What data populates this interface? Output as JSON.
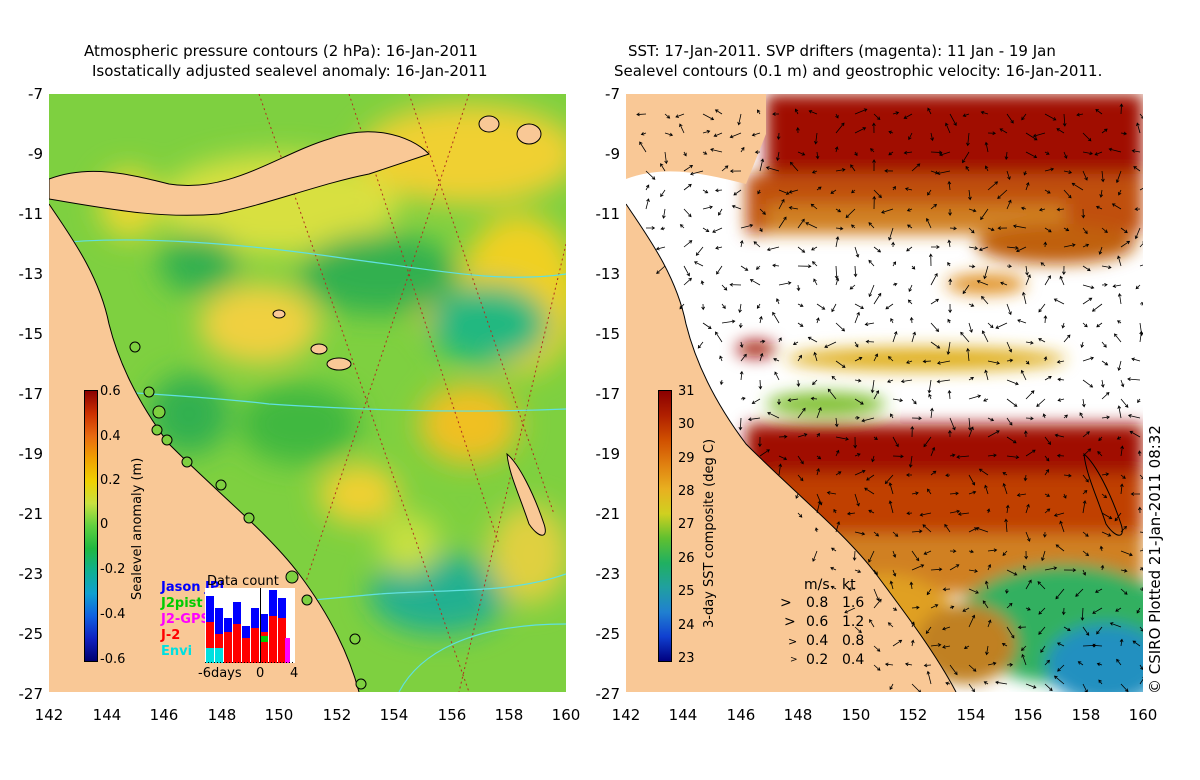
{
  "left_panel": {
    "title_line1": "Atmospheric pressure contours (2 hPa): 16-Jan-2011",
    "title_line2": "Isostatically adjusted sealevel anomaly: 16-Jan-2011",
    "colorbar": {
      "label": "Sealevel anomaly (m)",
      "ticks": [
        "0.6",
        "0.4",
        "0.2",
        "0",
        "-0.2",
        "-0.4",
        "-0.6"
      ],
      "colors": [
        "#8b0000",
        "#cc3000",
        "#e86a10",
        "#f0a000",
        "#f0d000",
        "#c8e040",
        "#60d040",
        "#20b840",
        "#10b090",
        "#10a0d0",
        "#1060e0",
        "#1020c0",
        "#000070"
      ]
    },
    "data_count": {
      "title": "Data count",
      "series": [
        "Jason JPL",
        "J2pist",
        "J2-GPS",
        "J-2",
        "Envi"
      ],
      "labels": [
        "Jason JPL",
        "J2pist",
        "J2-GPS",
        "J-2",
        "Envi"
      ],
      "colors": [
        "#0000ff",
        "#00cc00",
        "#ff00ff",
        "#ff0000",
        "#00e0e0"
      ],
      "xticks": [
        "-6days",
        "0",
        "4"
      ]
    }
  },
  "right_panel": {
    "title_line1": "SST: 17-Jan-2011. SVP drifters (magenta): 11 Jan - 19 Jan",
    "title_line2": "Sealevel contours (0.1 m) and geostrophic velocity: 16-Jan-2011.",
    "colorbar": {
      "label": "3-day SST composite (deg C)",
      "ticks": [
        "31",
        "30",
        "29",
        "28",
        "27",
        "26",
        "25",
        "24",
        "23"
      ],
      "colors": [
        "#8b0000",
        "#b02000",
        "#d05000",
        "#e08010",
        "#e8b020",
        "#d0d020",
        "#60c030",
        "#20b060",
        "#20a0a0",
        "#2080d0",
        "#1040d0",
        "#000080"
      ]
    },
    "arrow_key": {
      "header_ms": "m/s",
      "header_kt": "kt",
      "rows": [
        {
          "ms": "0.8",
          "kt": "1.6"
        },
        {
          "ms": "0.6",
          "kt": "1.2"
        },
        {
          "ms": "0.4",
          "kt": "0.8"
        },
        {
          "ms": "0.2",
          "kt": "0.4"
        }
      ]
    },
    "credit": "© CSIRO Plotted 21-Jan-2011 08:32"
  },
  "axes": {
    "y_ticks": [
      "-7",
      "-9",
      "-11",
      "-13",
      "-15",
      "-17",
      "-19",
      "-21",
      "-23",
      "-25",
      "-27"
    ],
    "x_ticks": [
      "142",
      "144",
      "146",
      "148",
      "150",
      "152",
      "154",
      "156",
      "158",
      "160"
    ]
  },
  "colors": {
    "land": "#f9c896",
    "sla_green": "#7ed040",
    "sst_white": "#ffffff"
  }
}
